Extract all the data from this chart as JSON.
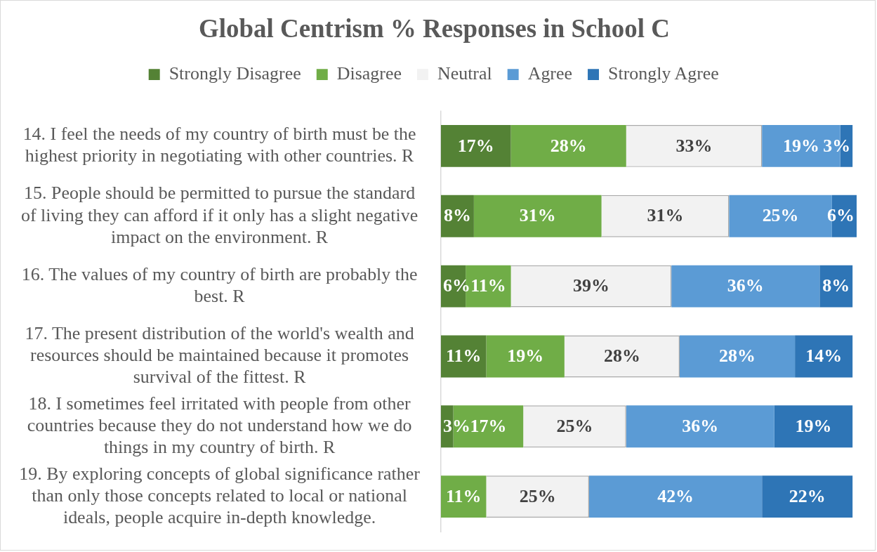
{
  "chart_data": {
    "type": "bar",
    "orientation": "horizontal",
    "stacked": true,
    "title": "Global Centrism % Responses in School C",
    "categories": [
      "14. I feel the needs of my country of birth must be the highest priority in negotiating with other countries. R",
      "15. People should be permitted to pursue the standard of living they can afford if it only has a slight negative impact on the environment. R",
      "16. The values of my country of birth are probably the best. R",
      "17. The present distribution of the world's wealth and resources should be maintained because it promotes survival of the fittest. R",
      "18. I sometimes feel irritated with people from other countries because they do not understand how we do things in my country of birth. R",
      "19. By exploring concepts of global significance rather than only those concepts related to local or national ideals, people acquire in-depth knowledge."
    ],
    "series": [
      {
        "name": "Strongly Disagree",
        "color": "#548235",
        "values": [
          17,
          8,
          6,
          11,
          3,
          null
        ],
        "value_labels": [
          "17%",
          "8%",
          "6%",
          "11%",
          "3%",
          null
        ]
      },
      {
        "name": "Disagree",
        "color": "#70ad47",
        "values": [
          28,
          31,
          11,
          19,
          17,
          11
        ],
        "value_labels": [
          "28%",
          "31%",
          "11%",
          "19%",
          "17%",
          "11%"
        ]
      },
      {
        "name": "Neutral",
        "color": "#f2f2f2",
        "values": [
          33,
          31,
          39,
          28,
          25,
          25
        ],
        "value_labels": [
          "33%",
          "31%",
          "39%",
          "28%",
          "25%",
          "25%"
        ]
      },
      {
        "name": "Agree",
        "color": "#5b9bd5",
        "values": [
          19,
          25,
          36,
          28,
          36,
          42
        ],
        "value_labels": [
          "19%",
          "25%",
          "36%",
          "28%",
          "36%",
          "42%"
        ]
      },
      {
        "name": "Strongly Agree",
        "color": "#2e75b6",
        "values": [
          3,
          6,
          8,
          14,
          19,
          22
        ],
        "value_labels": [
          "3%",
          "6%",
          "8%",
          "14%",
          "19%",
          "22%"
        ]
      }
    ],
    "legend": "top",
    "tick_labels": "y"
  }
}
